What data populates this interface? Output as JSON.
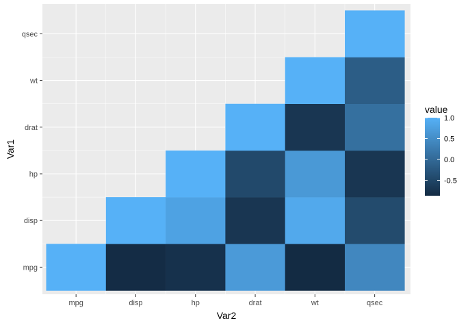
{
  "chart_data": {
    "type": "heatmap",
    "title": "",
    "xlabel": "Var2",
    "ylabel": "Var1",
    "x_categories": [
      "mpg",
      "disp",
      "hp",
      "drat",
      "wt",
      "qsec"
    ],
    "y_categories": [
      "mpg",
      "disp",
      "hp",
      "drat",
      "wt",
      "qsec"
    ],
    "cells": [
      {
        "x": "mpg",
        "y": "mpg",
        "value": 1.0
      },
      {
        "x": "disp",
        "y": "mpg",
        "value": -0.85
      },
      {
        "x": "hp",
        "y": "mpg",
        "value": -0.78
      },
      {
        "x": "drat",
        "y": "mpg",
        "value": 0.68
      },
      {
        "x": "wt",
        "y": "mpg",
        "value": -0.87
      },
      {
        "x": "qsec",
        "y": "mpg",
        "value": 0.42
      },
      {
        "x": "disp",
        "y": "disp",
        "value": 1.0
      },
      {
        "x": "hp",
        "y": "disp",
        "value": 0.79
      },
      {
        "x": "drat",
        "y": "disp",
        "value": -0.71
      },
      {
        "x": "wt",
        "y": "disp",
        "value": 0.89
      },
      {
        "x": "qsec",
        "y": "disp",
        "value": -0.43
      },
      {
        "x": "hp",
        "y": "hp",
        "value": 1.0
      },
      {
        "x": "drat",
        "y": "hp",
        "value": -0.45
      },
      {
        "x": "wt",
        "y": "hp",
        "value": 0.66
      },
      {
        "x": "qsec",
        "y": "hp",
        "value": -0.71
      },
      {
        "x": "drat",
        "y": "drat",
        "value": 1.0
      },
      {
        "x": "wt",
        "y": "drat",
        "value": -0.71
      },
      {
        "x": "qsec",
        "y": "drat",
        "value": 0.09
      },
      {
        "x": "wt",
        "y": "wt",
        "value": 1.0
      },
      {
        "x": "qsec",
        "y": "wt",
        "value": -0.17
      },
      {
        "x": "qsec",
        "y": "qsec",
        "value": 1.0
      }
    ],
    "legend": {
      "title": "value",
      "position": "right",
      "breaks": [
        1.0,
        0.5,
        0.0,
        -0.5
      ],
      "break_labels": [
        "1.0",
        "0.5",
        "0.0",
        "-0.5"
      ],
      "range": [
        -0.87,
        1.0
      ],
      "low_color": "#132B43",
      "high_color": "#56B1F7"
    },
    "grid": true,
    "panel_background": "#EBEBEB",
    "grid_color": "#FFFFFF"
  }
}
